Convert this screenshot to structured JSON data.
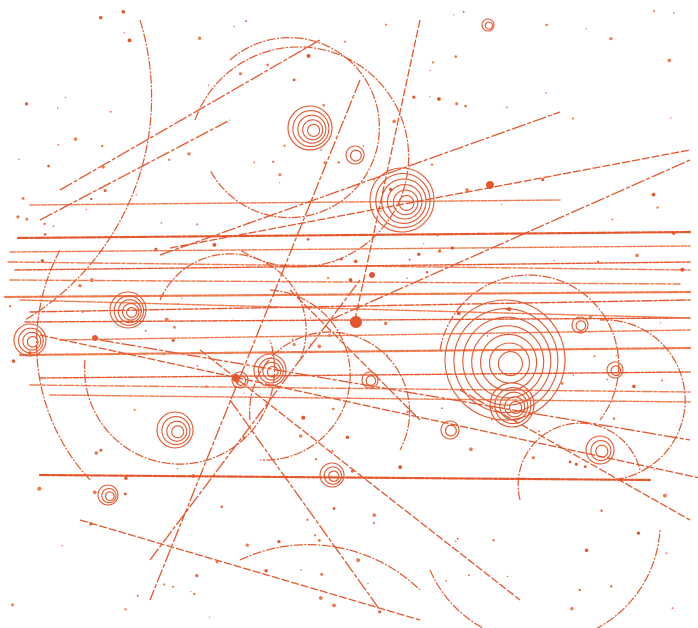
{
  "image": {
    "subject": "bubble-chamber-particle-tracks",
    "colors": {
      "background": "#ffffff",
      "track": "#e4572e",
      "track_light": "#ee7a4f"
    }
  }
}
